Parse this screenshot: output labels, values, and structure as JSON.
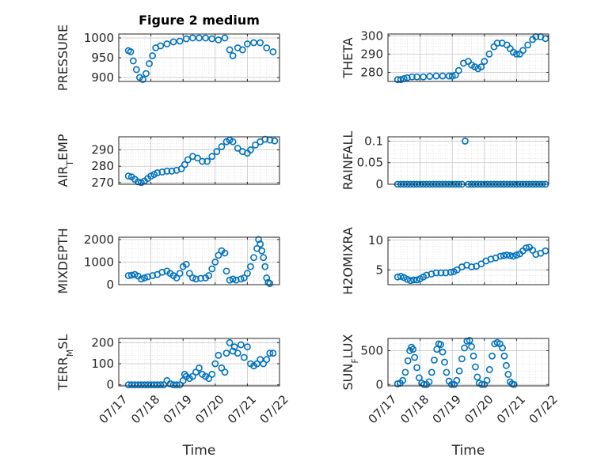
{
  "chart_data": [
    {
      "type": "scatter",
      "title": "Figure 2 medium",
      "ylabel": "PRESSURE",
      "xlabel": "",
      "xlim": [
        17,
        22
      ],
      "ylim": [
        890,
        1010
      ],
      "yticks": [
        900,
        950,
        1000
      ],
      "ytick_labels": [
        "900",
        "950",
        "1000"
      ],
      "xticks": [
        17,
        18,
        19,
        20,
        21,
        22
      ],
      "xtick_labels": [],
      "grid": true,
      "color": "#0072bd",
      "x": [
        17.3,
        17.37,
        17.45,
        17.55,
        17.65,
        17.75,
        17.85,
        17.95,
        18.05,
        18.15,
        18.3,
        18.5,
        18.7,
        18.9,
        19.1,
        19.3,
        19.5,
        19.7,
        19.9,
        20.1,
        20.3,
        20.45,
        20.55,
        20.7,
        20.85,
        21.0,
        21.2,
        21.4,
        21.6,
        21.8
      ],
      "y": [
        968,
        965,
        942,
        920,
        900,
        895,
        910,
        935,
        955,
        975,
        980,
        985,
        990,
        992,
        998,
        1000,
        1000,
        1000,
        998,
        995,
        1000,
        970,
        955,
        975,
        970,
        985,
        988,
        988,
        975,
        965
      ]
    },
    {
      "type": "scatter",
      "title": "",
      "ylabel": "THETA",
      "xlabel": "",
      "xlim": [
        17,
        22
      ],
      "ylim": [
        275,
        301
      ],
      "yticks": [
        280,
        290,
        300
      ],
      "ytick_labels": [
        "280",
        "290",
        "300"
      ],
      "xticks": [
        17,
        18,
        19,
        20,
        21,
        22
      ],
      "xtick_labels": [],
      "grid": true,
      "color": "#0072bd",
      "x": [
        17.3,
        17.4,
        17.5,
        17.6,
        17.75,
        17.9,
        18.1,
        18.3,
        18.5,
        18.7,
        18.9,
        19.0,
        19.1,
        19.2,
        19.35,
        19.5,
        19.6,
        19.7,
        19.8,
        19.9,
        20.0,
        20.15,
        20.3,
        20.4,
        20.55,
        20.7,
        20.8,
        20.9,
        21.0,
        21.1,
        21.2,
        21.35,
        21.5,
        21.6,
        21.75,
        21.9
      ],
      "y": [
        276,
        276,
        276.5,
        277,
        277.5,
        277.5,
        277.5,
        277.8,
        278,
        278,
        278,
        278,
        278.5,
        281,
        285,
        286,
        284,
        283,
        282,
        283,
        286,
        290,
        294,
        296,
        296,
        295,
        293,
        291,
        290,
        290,
        292,
        295,
        298,
        299.5,
        299.5,
        298.5
      ]
    },
    {
      "type": "scatter",
      "title": "",
      "ylabel": "AIR_TEMP",
      "xlabel": "",
      "xlim": [
        17,
        22
      ],
      "ylim": [
        269,
        298
      ],
      "yticks": [
        270,
        280,
        290
      ],
      "ytick_labels": [
        "270",
        "280",
        "290"
      ],
      "xticks": [
        17,
        18,
        19,
        20,
        21,
        22
      ],
      "xtick_labels": [],
      "grid": true,
      "color": "#0072bd",
      "x": [
        17.3,
        17.4,
        17.5,
        17.6,
        17.7,
        17.8,
        17.9,
        18.0,
        18.1,
        18.2,
        18.35,
        18.5,
        18.65,
        18.8,
        18.95,
        19.05,
        19.15,
        19.3,
        19.45,
        19.6,
        19.75,
        19.9,
        20.05,
        20.2,
        20.35,
        20.45,
        20.55,
        20.7,
        20.85,
        21.0,
        21.1,
        21.25,
        21.4,
        21.55,
        21.7,
        21.85
      ],
      "y": [
        274,
        273.5,
        272,
        270.5,
        270,
        271,
        272.5,
        274,
        275,
        276,
        276.5,
        277,
        277,
        277.5,
        278.5,
        281,
        284,
        286,
        285,
        283,
        283,
        286,
        289,
        292,
        295,
        296,
        295,
        291,
        289,
        288,
        290,
        293,
        295,
        296.5,
        296,
        295.5
      ]
    },
    {
      "type": "scatter",
      "title": "",
      "ylabel": "RAINFALL",
      "xlabel": "",
      "xlim": [
        17,
        22
      ],
      "ylim": [
        0,
        0.11
      ],
      "yticks": [
        0,
        0.05,
        0.1
      ],
      "ytick_labels": [
        "0",
        "0.05",
        "0.1"
      ],
      "xticks": [
        17,
        18,
        19,
        20,
        21,
        22
      ],
      "xtick_labels": [],
      "grid": true,
      "color": "#0072bd",
      "x": [
        17.3,
        17.4,
        17.5,
        17.6,
        17.7,
        17.8,
        17.9,
        18.0,
        18.1,
        18.2,
        18.3,
        18.4,
        18.5,
        18.6,
        18.7,
        18.8,
        18.9,
        19.0,
        19.1,
        19.2,
        19.3,
        19.4,
        19.5,
        19.6,
        19.7,
        19.8,
        19.9,
        20.0,
        20.1,
        20.2,
        20.3,
        20.4,
        20.5,
        20.6,
        20.7,
        20.8,
        20.9,
        21.0,
        21.1,
        21.2,
        21.3,
        21.4,
        21.5,
        21.6,
        21.7,
        21.8,
        21.9
      ],
      "y": [
        0,
        0,
        0,
        0,
        0,
        0,
        0,
        0,
        0,
        0,
        0,
        0,
        0,
        0,
        0,
        0,
        0,
        0,
        0,
        0,
        0,
        0.1,
        0,
        0,
        0,
        0,
        0,
        0,
        0,
        0,
        0,
        0,
        0,
        0,
        0,
        0,
        0,
        0,
        0,
        0,
        0,
        0,
        0,
        0,
        0,
        0,
        0
      ]
    },
    {
      "type": "scatter",
      "title": "",
      "ylabel": "MIXDEPTH",
      "xlabel": "",
      "xlim": [
        17,
        22
      ],
      "ylim": [
        0,
        2100
      ],
      "yticks": [
        0,
        1000,
        2000
      ],
      "ytick_labels": [
        "0",
        "1000",
        "2000"
      ],
      "xticks": [
        17,
        18,
        19,
        20,
        21,
        22
      ],
      "xtick_labels": [],
      "grid": true,
      "color": "#0072bd",
      "x": [
        17.3,
        17.4,
        17.5,
        17.6,
        17.7,
        17.8,
        17.9,
        18.05,
        18.2,
        18.35,
        18.5,
        18.6,
        18.7,
        18.8,
        18.9,
        19.0,
        19.1,
        19.2,
        19.3,
        19.4,
        19.55,
        19.7,
        19.8,
        19.9,
        20.0,
        20.1,
        20.2,
        20.3,
        20.35,
        20.45,
        20.55,
        20.65,
        20.8,
        20.9,
        21.0,
        21.1,
        21.2,
        21.3,
        21.35,
        21.4,
        21.45,
        21.5,
        21.55,
        21.6,
        21.65,
        21.7
      ],
      "y": [
        400,
        420,
        450,
        380,
        250,
        300,
        350,
        400,
        450,
        550,
        600,
        500,
        400,
        300,
        500,
        800,
        900,
        500,
        300,
        250,
        280,
        300,
        400,
        700,
        1000,
        1300,
        1500,
        1400,
        600,
        200,
        250,
        200,
        250,
        300,
        500,
        800,
        1200,
        1600,
        2000,
        1800,
        1500,
        1200,
        800,
        300,
        100,
        50
      ]
    },
    {
      "type": "scatter",
      "title": "",
      "ylabel": "H2OMIXRA",
      "xlabel": "",
      "xlim": [
        17,
        22
      ],
      "ylim": [
        2.5,
        10.5
      ],
      "yticks": [
        5,
        10
      ],
      "ytick_labels": [
        "5",
        "10"
      ],
      "xticks": [
        17,
        18,
        19,
        20,
        21,
        22
      ],
      "xtick_labels": [],
      "grid": true,
      "color": "#0072bd",
      "x": [
        17.3,
        17.4,
        17.5,
        17.6,
        17.7,
        17.8,
        17.9,
        18.0,
        18.1,
        18.2,
        18.35,
        18.5,
        18.65,
        18.8,
        18.95,
        19.05,
        19.15,
        19.3,
        19.45,
        19.6,
        19.75,
        19.9,
        20.05,
        20.2,
        20.35,
        20.5,
        20.6,
        20.7,
        20.8,
        20.9,
        21.0,
        21.1,
        21.2,
        21.3,
        21.4,
        21.5,
        21.6,
        21.75,
        21.9
      ],
      "y": [
        3.8,
        3.9,
        3.7,
        3.4,
        3.2,
        3.3,
        3.3,
        3.5,
        3.8,
        4.1,
        4.3,
        4.5,
        4.5,
        4.5,
        4.6,
        4.7,
        5.0,
        5.5,
        5.8,
        5.5,
        5.6,
        6.0,
        6.5,
        6.8,
        7.0,
        7.3,
        7.4,
        7.5,
        7.4,
        7.3,
        7.5,
        7.7,
        8.2,
        8.7,
        8.8,
        8.3,
        7.6,
        7.8,
        8.2
      ]
    },
    {
      "type": "scatter",
      "title": "",
      "ylabel": "TERR_MSL",
      "xlabel": "Time",
      "xlim": [
        17,
        22
      ],
      "ylim": [
        -5,
        220
      ],
      "yticks": [
        0,
        100,
        200
      ],
      "ytick_labels": [
        "0",
        "100",
        "200"
      ],
      "xticks": [
        17,
        18,
        19,
        20,
        21,
        22
      ],
      "xtick_labels": [
        "07/17",
        "07/18",
        "07/19",
        "07/20",
        "07/21",
        "07/22"
      ],
      "grid": true,
      "color": "#0072bd",
      "x": [
        17.3,
        17.4,
        17.5,
        17.6,
        17.7,
        17.8,
        17.9,
        18.0,
        18.1,
        18.2,
        18.3,
        18.4,
        18.5,
        18.6,
        18.7,
        18.8,
        18.9,
        19.0,
        19.05,
        19.1,
        19.2,
        19.3,
        19.4,
        19.5,
        19.6,
        19.7,
        19.8,
        19.9,
        20.0,
        20.1,
        20.2,
        20.3,
        20.35,
        20.45,
        20.55,
        20.6,
        20.7,
        20.8,
        20.9,
        21.0,
        21.1,
        21.2,
        21.3,
        21.4,
        21.5,
        21.6,
        21.7,
        21.8
      ],
      "y": [
        0,
        0,
        0,
        0,
        0,
        0,
        0,
        0,
        0,
        0,
        0,
        0,
        20,
        5,
        0,
        0,
        0,
        20,
        50,
        40,
        30,
        40,
        60,
        80,
        50,
        40,
        30,
        50,
        100,
        140,
        80,
        60,
        150,
        200,
        160,
        180,
        150,
        190,
        130,
        180,
        100,
        90,
        100,
        120,
        100,
        120,
        150,
        150
      ]
    },
    {
      "type": "scatter",
      "title": "",
      "ylabel": "SUN_FLUX",
      "xlabel": "Time",
      "xlim": [
        17,
        22
      ],
      "ylim": [
        -20,
        680
      ],
      "yticks": [
        0,
        500
      ],
      "ytick_labels": [
        "0",
        "500"
      ],
      "xticks": [
        17,
        18,
        19,
        20,
        21,
        22
      ],
      "xtick_labels": [
        "07/17",
        "07/18",
        "07/19",
        "07/20",
        "07/21",
        "07/22"
      ],
      "grid": true,
      "color": "#0072bd",
      "x": [
        17.3,
        17.38,
        17.46,
        17.54,
        17.62,
        17.68,
        17.73,
        17.78,
        17.83,
        17.9,
        17.97,
        18.05,
        18.12,
        18.2,
        18.28,
        18.36,
        18.44,
        18.52,
        18.58,
        18.64,
        18.7,
        18.76,
        18.82,
        18.9,
        18.98,
        19.06,
        19.14,
        19.22,
        19.3,
        19.38,
        19.46,
        19.54,
        19.6,
        19.66,
        19.72,
        19.78,
        19.84,
        19.92,
        20.0,
        20.08,
        20.16,
        20.24,
        20.32,
        20.4,
        20.48,
        20.56,
        20.62,
        20.68,
        20.74,
        20.8,
        20.86,
        20.92
      ],
      "y": [
        10,
        20,
        60,
        180,
        350,
        500,
        550,
        520,
        400,
        250,
        100,
        20,
        0,
        0,
        40,
        180,
        360,
        520,
        600,
        590,
        480,
        330,
        180,
        50,
        0,
        0,
        60,
        200,
        380,
        540,
        640,
        650,
        560,
        420,
        260,
        110,
        20,
        0,
        0,
        60,
        220,
        420,
        600,
        620,
        600,
        540,
        420,
        280,
        150,
        40,
        10,
        0
      ]
    }
  ]
}
